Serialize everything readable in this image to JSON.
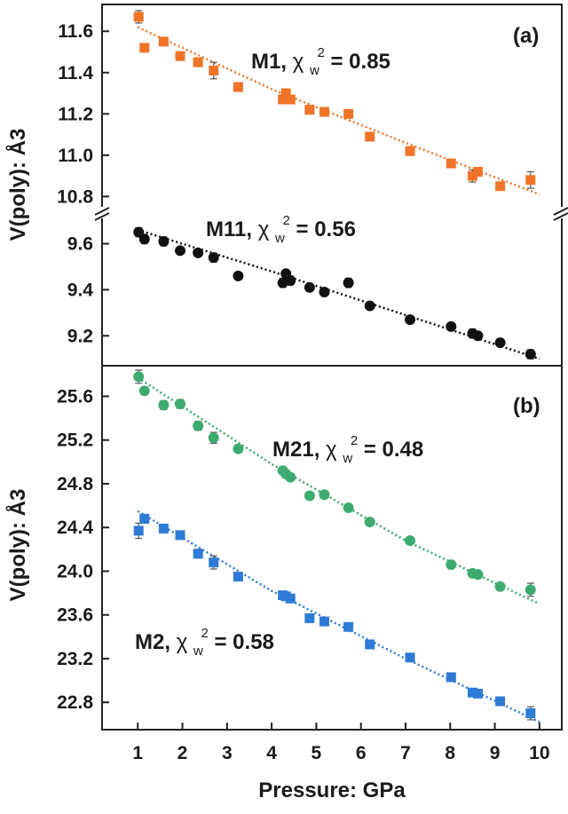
{
  "chart_data": [
    {
      "panel": "(a)",
      "type": "scatter",
      "xlabel": "Pressure: GPa",
      "ylabel": "V(poly): Å3",
      "xlim": [
        0.2,
        10.5
      ],
      "broken_y_axis": true,
      "upper_segment": {
        "ylim": [
          10.75,
          11.73
        ],
        "ticks": [
          "10.8",
          "11.0",
          "11.2",
          "11.4",
          "11.6"
        ],
        "series": [
          {
            "name": "M1",
            "chi2w": "0.85",
            "color": "#f07427",
            "marker": "square",
            "label_prefix": "M1, ",
            "label_chi": "χ",
            "label_sub": "w",
            "label_sup": "2",
            "label_suffix": " = 0.85",
            "x": [
              1.02,
              1.15,
              1.58,
              1.95,
              2.35,
              2.7,
              3.25,
              4.25,
              4.32,
              4.42,
              4.85,
              5.18,
              5.72,
              6.2,
              7.1,
              8.02,
              8.5,
              8.62,
              9.12,
              9.8
            ],
            "y": [
              11.67,
              11.52,
              11.55,
              11.48,
              11.45,
              11.41,
              11.33,
              11.27,
              11.3,
              11.27,
              11.22,
              11.21,
              11.2,
              11.09,
              11.02,
              10.96,
              10.9,
              10.92,
              10.85,
              10.88
            ],
            "err": [
              0.03,
              0.02,
              0.02,
              0.02,
              0.02,
              0.04,
              0.02,
              0.02,
              0.02,
              0.02,
              0.02,
              0.02,
              0.02,
              0.02,
              0.02,
              0.02,
              0.03,
              0.02,
              0.02,
              0.04
            ],
            "fit": [
              [
                1.0,
                11.62
              ],
              [
                4.0,
                11.32
              ],
              [
                7.0,
                11.06
              ],
              [
                10.0,
                10.81
              ]
            ]
          }
        ]
      },
      "lower_segment": {
        "ylim": [
          9.07,
          9.71
        ],
        "ticks": [
          "9.2",
          "9.4",
          "9.6"
        ],
        "series": [
          {
            "name": "M11",
            "chi2w": "0.56",
            "color": "#111111",
            "marker": "circle",
            "label_prefix": "M11, ",
            "label_chi": "χ",
            "label_sub": "w",
            "label_sup": "2",
            "label_suffix": " = 0.56",
            "x": [
              1.02,
              1.15,
              1.58,
              1.95,
              2.35,
              2.7,
              3.25,
              4.25,
              4.32,
              4.42,
              4.85,
              5.18,
              5.72,
              6.2,
              7.1,
              8.02,
              8.5,
              8.62,
              9.12,
              9.8
            ],
            "y": [
              9.65,
              9.62,
              9.61,
              9.57,
              9.56,
              9.54,
              9.46,
              9.43,
              9.47,
              9.44,
              9.41,
              9.39,
              9.43,
              9.33,
              9.27,
              9.24,
              9.21,
              9.2,
              9.17,
              9.12
            ],
            "err": [
              0.02,
              0.02,
              0.02,
              0.01,
              0.01,
              0.02,
              0.01,
              0.02,
              0.01,
              0.02,
              0.01,
              0.01,
              0.02,
              0.01,
              0.01,
              0.01,
              0.02,
              0.01,
              0.01,
              0.02
            ],
            "fit": [
              [
                1.0,
                9.66
              ],
              [
                4.0,
                9.48
              ],
              [
                7.0,
                9.29
              ],
              [
                10.0,
                9.1
              ]
            ]
          }
        ]
      }
    },
    {
      "panel": "(b)",
      "type": "scatter",
      "xlabel": "Pressure: GPa",
      "ylabel": "V(poly): Å3",
      "xlim": [
        0.2,
        10.5
      ],
      "xticks": [
        "1",
        "2",
        "3",
        "4",
        "5",
        "6",
        "7",
        "8",
        "9",
        "10"
      ],
      "ylim": [
        22.55,
        25.88
      ],
      "ticks": [
        "22.8",
        "23.2",
        "23.6",
        "24.0",
        "24.4",
        "24.8",
        "25.2",
        "25.6"
      ],
      "series": [
        {
          "name": "M21",
          "chi2w": "0.48",
          "color": "#3dab6f",
          "marker": "circle",
          "label_prefix": "M21, ",
          "label_chi": "χ",
          "label_sub": "w",
          "label_sup": "2",
          "label_suffix": " = 0.48",
          "x": [
            1.02,
            1.15,
            1.58,
            1.95,
            2.35,
            2.7,
            3.25,
            4.25,
            4.32,
            4.42,
            4.85,
            5.18,
            5.72,
            6.2,
            7.1,
            8.02,
            8.5,
            8.62,
            9.12,
            9.8
          ],
          "y": [
            25.78,
            25.65,
            25.52,
            25.53,
            25.33,
            25.22,
            25.12,
            24.92,
            24.89,
            24.86,
            24.69,
            24.7,
            24.58,
            24.45,
            24.28,
            24.06,
            23.98,
            23.97,
            23.86,
            23.83
          ],
          "err": [
            0.06,
            0.03,
            0.04,
            0.04,
            0.04,
            0.05,
            0.03,
            0.03,
            0.03,
            0.03,
            0.03,
            0.03,
            0.03,
            0.03,
            0.03,
            0.03,
            0.03,
            0.03,
            0.03,
            0.06
          ],
          "fit": [
            [
              1.0,
              25.77
            ],
            [
              4.0,
              24.98
            ],
            [
              7.0,
              24.28
            ],
            [
              10.0,
              23.7
            ]
          ]
        },
        {
          "name": "M2",
          "chi2w": "0.58",
          "color": "#2e7bd6",
          "marker": "square",
          "label_prefix": "M2, ",
          "label_chi": "χ",
          "label_sub": "w",
          "label_sup": "2",
          "label_suffix": " = 0.58",
          "x": [
            1.02,
            1.15,
            1.58,
            1.95,
            2.35,
            2.7,
            3.25,
            4.25,
            4.32,
            4.42,
            4.85,
            5.18,
            5.72,
            6.2,
            7.1,
            8.02,
            8.5,
            8.62,
            9.12,
            9.8
          ],
          "y": [
            24.37,
            24.48,
            24.39,
            24.33,
            24.16,
            24.08,
            23.95,
            23.78,
            23.77,
            23.75,
            23.57,
            23.54,
            23.49,
            23.33,
            23.21,
            23.03,
            22.89,
            22.88,
            22.81,
            22.7
          ],
          "err": [
            0.07,
            0.04,
            0.03,
            0.03,
            0.04,
            0.06,
            0.03,
            0.03,
            0.03,
            0.03,
            0.03,
            0.03,
            0.03,
            0.03,
            0.03,
            0.03,
            0.03,
            0.03,
            0.03,
            0.06
          ],
          "fit": [
            [
              1.0,
              24.55
            ],
            [
              4.0,
              23.82
            ],
            [
              7.0,
              23.2
            ],
            [
              10.0,
              22.62
            ]
          ]
        }
      ]
    }
  ]
}
